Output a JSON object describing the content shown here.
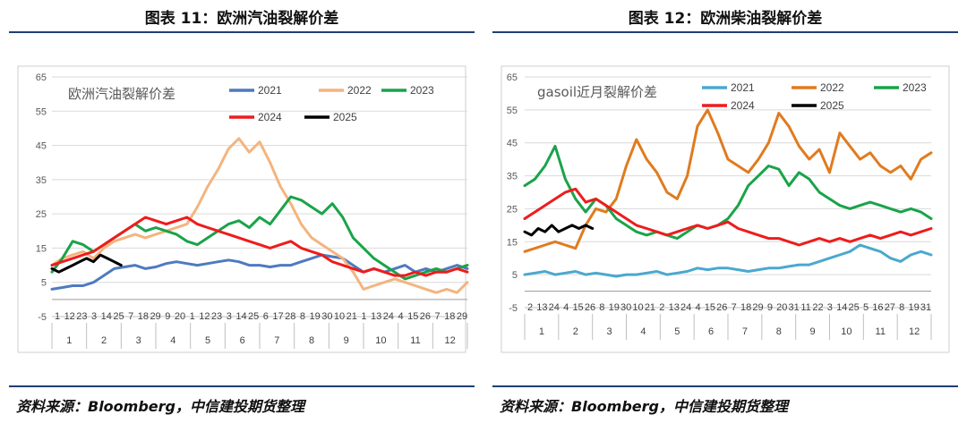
{
  "figures": [
    {
      "title": "图表 11：欧洲汽油裂解价差",
      "source": "资料来源：Bloomberg，中信建投期货整理",
      "chart_data": {
        "type": "line",
        "inner_title": "欧洲汽油裂解价差",
        "y_ticks": [
          65,
          55,
          45,
          35,
          25,
          15,
          5,
          -5
        ],
        "ylim": [
          -5,
          65
        ],
        "x_day_labels": [
          "1",
          "12",
          "23",
          "3",
          "14",
          "25",
          "7",
          "18",
          "29",
          "9",
          "20",
          "1",
          "12",
          "23",
          "3",
          "14",
          "25",
          "6",
          "17",
          "28",
          "8",
          "19",
          "30",
          "10",
          "21",
          "1",
          "13",
          "24",
          "4",
          "15",
          "26",
          "7",
          "18",
          "29"
        ],
        "months": [
          "1",
          "2",
          "3",
          "4",
          "5",
          "6",
          "7",
          "8",
          "9",
          "10",
          "11",
          "12"
        ],
        "legend_position": "top",
        "series": [
          {
            "name": "2021",
            "color": "#4e7ac0",
            "x": [
              0,
              0.3,
              0.6,
              0.9,
              1.2,
              1.5,
              1.8,
              2.1,
              2.4,
              2.7,
              3.0,
              3.3,
              3.6,
              3.9,
              4.2,
              4.5,
              4.8,
              5.1,
              5.4,
              5.7,
              6.0,
              6.3,
              6.6,
              6.9,
              7.2,
              7.5,
              7.8,
              8.1,
              8.4,
              8.7,
              9.0,
              9.3,
              9.6,
              9.9,
              10.2,
              10.5,
              10.8,
              11.1,
              11.4,
              11.7,
              12.0
            ],
            "y": [
              3,
              3.5,
              4,
              4,
              5,
              7,
              9,
              9.5,
              10,
              9,
              9.5,
              10.5,
              11,
              10.5,
              10,
              10.5,
              11,
              11.5,
              11,
              10,
              10,
              9.5,
              10,
              10,
              11,
              12,
              13,
              12.5,
              12,
              10,
              8,
              9,
              8,
              9,
              10,
              8,
              9,
              8,
              9,
              10,
              9
            ]
          },
          {
            "name": "2022",
            "color": "#f4b47e",
            "x": [
              0,
              0.3,
              0.6,
              0.9,
              1.2,
              1.5,
              1.8,
              2.1,
              2.4,
              2.7,
              3.0,
              3.3,
              3.6,
              3.9,
              4.2,
              4.5,
              4.8,
              5.1,
              5.4,
              5.7,
              6.0,
              6.3,
              6.6,
              6.9,
              7.2,
              7.5,
              7.8,
              8.1,
              8.4,
              8.7,
              9.0,
              9.3,
              9.6,
              9.9,
              10.2,
              10.5,
              10.8,
              11.1,
              11.4,
              11.7,
              12.0
            ],
            "y": [
              10,
              12,
              13,
              14,
              12,
              15,
              17,
              18,
              19,
              18,
              19,
              20,
              21,
              22,
              27,
              33,
              38,
              44,
              47,
              43,
              46,
              40,
              33,
              28,
              22,
              18,
              16,
              14,
              12,
              8,
              3,
              4,
              5,
              6,
              5,
              4,
              3,
              2,
              3,
              2,
              5
            ]
          },
          {
            "name": "2023",
            "color": "#1aa34a",
            "x": [
              0,
              0.3,
              0.6,
              0.9,
              1.2,
              1.5,
              1.8,
              2.1,
              2.4,
              2.7,
              3.0,
              3.3,
              3.6,
              3.9,
              4.2,
              4.5,
              4.8,
              5.1,
              5.4,
              5.7,
              6.0,
              6.3,
              6.6,
              6.9,
              7.2,
              7.5,
              7.8,
              8.1,
              8.4,
              8.7,
              9.0,
              9.3,
              9.6,
              9.9,
              10.2,
              10.5,
              10.8,
              11.1,
              11.4,
              11.7,
              12.0
            ],
            "y": [
              8,
              12,
              17,
              16,
              14,
              16,
              18,
              20,
              22,
              20,
              21,
              20,
              19,
              17,
              16,
              18,
              20,
              22,
              23,
              21,
              24,
              22,
              26,
              30,
              29,
              27,
              25,
              28,
              24,
              18,
              15,
              12,
              10,
              8,
              6,
              7,
              8,
              9,
              8,
              9,
              10
            ]
          },
          {
            "name": "2024",
            "color": "#ee1c1c",
            "x": [
              0,
              0.3,
              0.6,
              0.9,
              1.2,
              1.5,
              1.8,
              2.1,
              2.4,
              2.7,
              3.0,
              3.3,
              3.6,
              3.9,
              4.2,
              4.5,
              4.8,
              5.1,
              5.4,
              5.7,
              6.0,
              6.3,
              6.6,
              6.9,
              7.2,
              7.5,
              7.8,
              8.1,
              8.4,
              8.7,
              9.0,
              9.3,
              9.6,
              9.9,
              10.2,
              10.5,
              10.8,
              11.1,
              11.4,
              11.7,
              12.0
            ],
            "y": [
              10,
              11,
              12,
              13,
              14,
              16,
              18,
              20,
              22,
              24,
              23,
              22,
              23,
              24,
              22,
              21,
              20,
              19,
              18,
              17,
              16,
              15,
              16,
              17,
              15,
              14,
              13,
              11,
              10,
              9,
              8,
              9,
              8,
              7,
              7,
              8,
              7,
              8,
              8,
              9,
              8
            ]
          },
          {
            "name": "2025",
            "color": "#000000",
            "x": [
              0,
              0.2,
              0.4,
              0.6,
              0.8,
              1.0,
              1.2,
              1.4,
              1.6,
              1.8,
              2.0
            ],
            "y": [
              9,
              8,
              9,
              10,
              11,
              12,
              11,
              13,
              12,
              11,
              10
            ]
          }
        ]
      }
    },
    {
      "title": "图表 12：欧洲柴油裂解价差",
      "source": "资料来源：Bloomberg，中信建投期货整理",
      "chart_data": {
        "type": "line",
        "inner_title": "gasoil近月裂解价差",
        "y_ticks": [
          65,
          55,
          45,
          35,
          25,
          15,
          5,
          -5
        ],
        "ylim": [
          -5,
          65
        ],
        "x_day_labels": [
          "2",
          "13",
          "24",
          "4",
          "15",
          "26",
          "8",
          "19",
          "30",
          "10",
          "21",
          "2",
          "13",
          "24",
          "4",
          "15",
          "26",
          "7",
          "18",
          "29",
          "9",
          "20",
          "31",
          "11",
          "22",
          "3",
          "14",
          "25",
          "5",
          "16",
          "27",
          "8",
          "19",
          "31"
        ],
        "months": [
          "1",
          "2",
          "3",
          "4",
          "5",
          "6",
          "7",
          "8",
          "9",
          "10",
          "11",
          "12"
        ],
        "legend_position": "top",
        "series": [
          {
            "name": "2021",
            "color": "#4aa8cf",
            "x": [
              0,
              0.3,
              0.6,
              0.9,
              1.2,
              1.5,
              1.8,
              2.1,
              2.4,
              2.7,
              3.0,
              3.3,
              3.6,
              3.9,
              4.2,
              4.5,
              4.8,
              5.1,
              5.4,
              5.7,
              6.0,
              6.3,
              6.6,
              6.9,
              7.2,
              7.5,
              7.8,
              8.1,
              8.4,
              8.7,
              9.0,
              9.3,
              9.6,
              9.9,
              10.2,
              10.5,
              10.8,
              11.1,
              11.4,
              11.7,
              12.0
            ],
            "y": [
              5,
              5.5,
              6,
              5,
              5.5,
              6,
              5,
              5.5,
              5,
              4.5,
              5,
              5,
              5.5,
              6,
              5,
              5.5,
              6,
              7,
              6.5,
              7,
              7,
              6.5,
              6,
              6.5,
              7,
              7,
              7.5,
              8,
              8,
              9,
              10,
              11,
              12,
              14,
              13,
              12,
              10,
              9,
              11,
              12,
              11
            ]
          },
          {
            "name": "2022",
            "color": "#e07b1f",
            "x": [
              0,
              0.3,
              0.6,
              0.9,
              1.2,
              1.5,
              1.8,
              2.1,
              2.4,
              2.7,
              3.0,
              3.3,
              3.6,
              3.9,
              4.2,
              4.5,
              4.8,
              5.1,
              5.4,
              5.7,
              6.0,
              6.3,
              6.6,
              6.9,
              7.2,
              7.5,
              7.8,
              8.1,
              8.4,
              8.7,
              9.0,
              9.3,
              9.6,
              9.9,
              10.2,
              10.5,
              10.8,
              11.1,
              11.4,
              11.7,
              12.0
            ],
            "y": [
              12,
              13,
              14,
              15,
              14,
              13,
              20,
              25,
              24,
              28,
              38,
              46,
              40,
              36,
              30,
              28,
              35,
              50,
              55,
              48,
              40,
              38,
              36,
              40,
              45,
              54,
              50,
              44,
              40,
              43,
              36,
              48,
              44,
              40,
              42,
              38,
              36,
              38,
              34,
              40,
              42
            ]
          },
          {
            "name": "2023",
            "color": "#1aa34a",
            "x": [
              0,
              0.3,
              0.6,
              0.9,
              1.2,
              1.5,
              1.8,
              2.1,
              2.4,
              2.7,
              3.0,
              3.3,
              3.6,
              3.9,
              4.2,
              4.5,
              4.8,
              5.1,
              5.4,
              5.7,
              6.0,
              6.3,
              6.6,
              6.9,
              7.2,
              7.5,
              7.8,
              8.1,
              8.4,
              8.7,
              9.0,
              9.3,
              9.6,
              9.9,
              10.2,
              10.5,
              10.8,
              11.1,
              11.4,
              11.7,
              12.0
            ],
            "y": [
              32,
              34,
              38,
              44,
              34,
              28,
              24,
              28,
              26,
              22,
              20,
              18,
              17,
              18,
              17,
              16,
              18,
              20,
              19,
              20,
              22,
              26,
              32,
              35,
              38,
              37,
              32,
              36,
              34,
              30,
              28,
              26,
              25,
              26,
              27,
              26,
              25,
              24,
              25,
              24,
              22
            ]
          },
          {
            "name": "2024",
            "color": "#ee1c1c",
            "x": [
              0,
              0.3,
              0.6,
              0.9,
              1.2,
              1.5,
              1.8,
              2.1,
              2.4,
              2.7,
              3.0,
              3.3,
              3.6,
              3.9,
              4.2,
              4.5,
              4.8,
              5.1,
              5.4,
              5.7,
              6.0,
              6.3,
              6.6,
              6.9,
              7.2,
              7.5,
              7.8,
              8.1,
              8.4,
              8.7,
              9.0,
              9.3,
              9.6,
              9.9,
              10.2,
              10.5,
              10.8,
              11.1,
              11.4,
              11.7,
              12.0
            ],
            "y": [
              22,
              24,
              26,
              28,
              30,
              31,
              27,
              28,
              26,
              24,
              22,
              20,
              19,
              18,
              17,
              18,
              19,
              20,
              19,
              20,
              21,
              19,
              18,
              17,
              16,
              16,
              15,
              14,
              15,
              16,
              15,
              16,
              15,
              16,
              17,
              16,
              17,
              18,
              17,
              18,
              19
            ]
          },
          {
            "name": "2025",
            "color": "#000000",
            "x": [
              0,
              0.2,
              0.4,
              0.6,
              0.8,
              1.0,
              1.2,
              1.4,
              1.6,
              1.8,
              2.0
            ],
            "y": [
              18,
              17,
              19,
              18,
              20,
              18,
              19,
              20,
              19,
              20,
              19
            ]
          }
        ]
      }
    }
  ]
}
